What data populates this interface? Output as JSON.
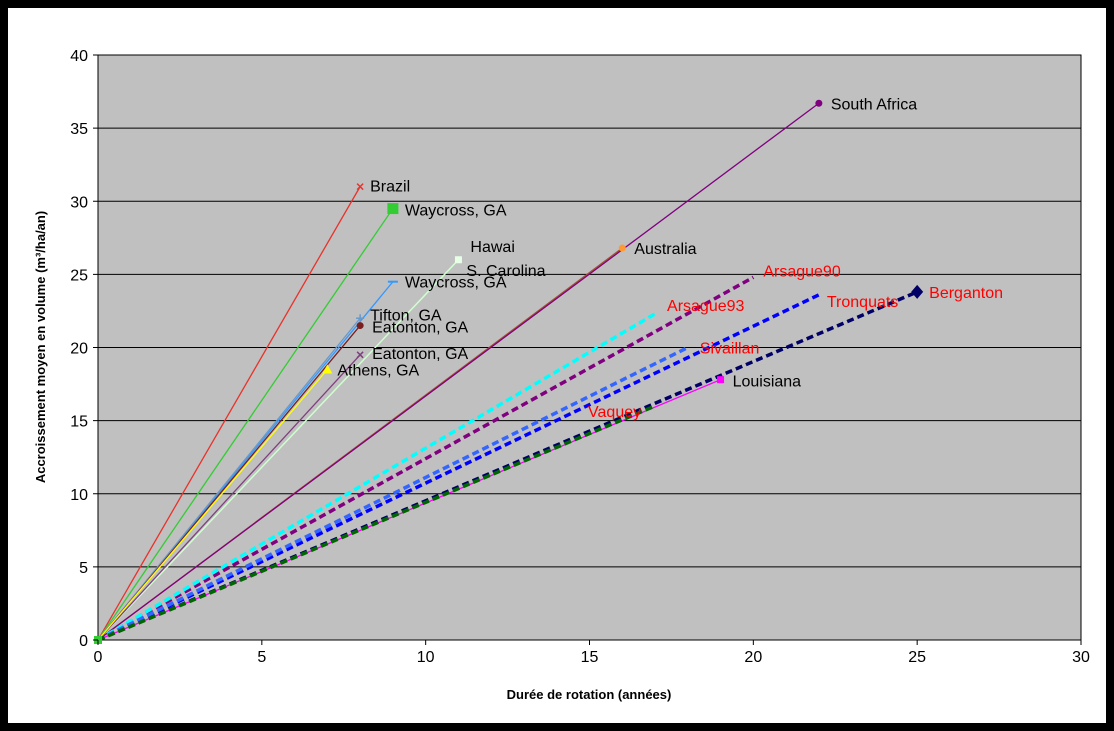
{
  "chart_data": {
    "type": "scatter",
    "xlabel": "Durée de rotation (années)",
    "ylabel": "Accroissement moyen en volume (m³/ha/an)",
    "xlim": [
      0,
      30
    ],
    "ylim": [
      0,
      40
    ],
    "xticks": [
      "0",
      "5",
      "10",
      "15",
      "20",
      "25",
      "30"
    ],
    "yticks": [
      "0",
      "5",
      "10",
      "15",
      "20",
      "25",
      "30",
      "35",
      "40"
    ],
    "grid": "horizontal",
    "plot_background": "#c0c0c0",
    "series": [
      {
        "name": "Brazil",
        "x": 8,
        "y": 31,
        "color": "#e8322a",
        "label_color": "#000000",
        "marker": "x",
        "dash": false
      },
      {
        "name": "Waycross, GA",
        "x": 9,
        "y": 29.5,
        "color": "#33cc33",
        "label_color": "#000000",
        "marker": "square",
        "dash": false
      },
      {
        "name": "Hawai",
        "x": 11,
        "y": 26,
        "color": "#e6ffe6",
        "label_color": "#000000",
        "marker": "square",
        "dash": false
      },
      {
        "name": "S. Carolina",
        "x": 11,
        "y": 26,
        "color": "#ccffcc",
        "label_color": "#000000",
        "marker": "none",
        "dash": false
      },
      {
        "name": "Waycross, GA",
        "x": 9,
        "y": 24.5,
        "color": "#3399ff",
        "label_color": "#000000",
        "marker": "dash",
        "dash": false
      },
      {
        "name": "Tifton, GA",
        "x": 8,
        "y": 22,
        "color": "#6699cc",
        "label_color": "#000000",
        "marker": "plus",
        "dash": false
      },
      {
        "name": "Eatonton, GA",
        "x": 8,
        "y": 21.5,
        "color": "#7a1f1f",
        "label_color": "#000000",
        "marker": "circle",
        "dash": false
      },
      {
        "name": "Eatonton, GA",
        "x": 8,
        "y": 19.5,
        "color": "#7f3f7f",
        "label_color": "#000000",
        "marker": "x",
        "dash": false
      },
      {
        "name": "Athens, GA",
        "x": 7,
        "y": 18.5,
        "color": "#ffff00",
        "label_color": "#000000",
        "marker": "triangle",
        "dash": false
      },
      {
        "name": "Australia",
        "x": 16,
        "y": 26.8,
        "color": "#a0522d",
        "label_color": "#000000",
        "marker": "dot-orange",
        "dash": false
      },
      {
        "name": "South Africa",
        "x": 22,
        "y": 36.7,
        "color": "#800080",
        "label_color": "#000000",
        "marker": "circle",
        "dash": false
      },
      {
        "name": "Arsague90",
        "x": 20,
        "y": 24.8,
        "color": "#800080",
        "label_color": "#ff0000",
        "marker": "none",
        "dash": true
      },
      {
        "name": "Tronquats",
        "x": 22,
        "y": 23.6,
        "color": "#0000ff",
        "label_color": "#ff0000",
        "marker": "none",
        "dash": true
      },
      {
        "name": "Berganton",
        "x": 25,
        "y": 23.8,
        "color": "#000066",
        "label_color": "#ff0000",
        "marker": "diamond",
        "dash": true
      },
      {
        "name": "Arsague93",
        "x": 17,
        "y": 22.3,
        "color": "#00ffff",
        "label_color": "#ff0000",
        "marker": "none",
        "dash": true
      },
      {
        "name": "Sivaillan",
        "x": 18,
        "y": 20,
        "color": "#3366ff",
        "label_color": "#ff0000",
        "marker": "none",
        "dash": true
      },
      {
        "name": "Louisiana",
        "x": 19,
        "y": 17.8,
        "color": "#ff00ff",
        "label_color": "#000000",
        "marker": "square",
        "dash": false
      },
      {
        "name": "Vaquey",
        "x": 17,
        "y": 16,
        "color": "#006600",
        "label_color": "#ff0000",
        "marker": "none",
        "dash": true
      }
    ]
  }
}
